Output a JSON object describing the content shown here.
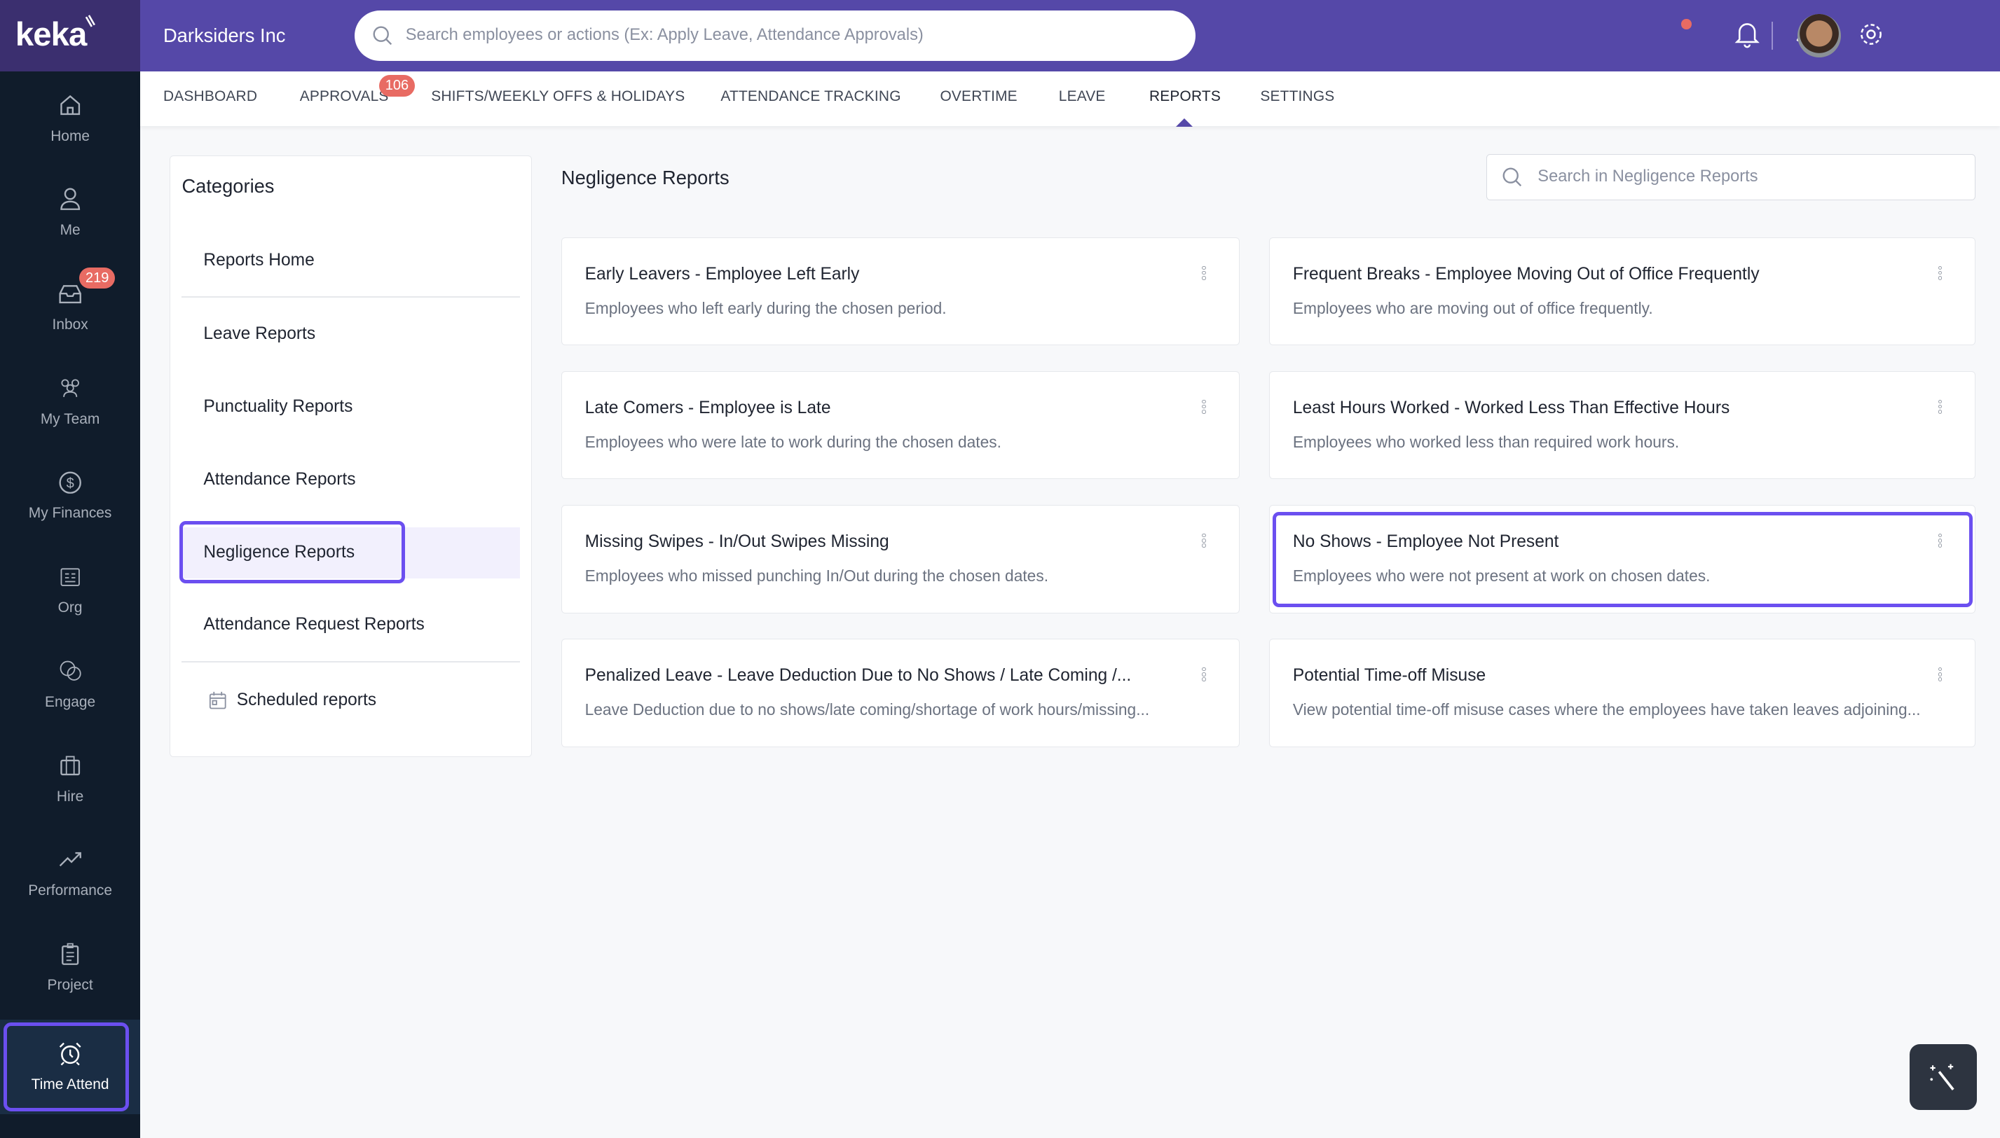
{
  "brand": {
    "logo": "keka",
    "company": "Darksiders Inc",
    "accent": "#5548a8",
    "highlight": "#6b4ff0"
  },
  "search": {
    "placeholder": "Search employees or actions (Ex: Apply Leave, Attendance Approvals)"
  },
  "topbar_icons": [
    "bell-icon",
    "rocket-icon",
    "gear-icon",
    "avatar"
  ],
  "sidebar": {
    "items": [
      {
        "label": "Home",
        "icon": "home-icon"
      },
      {
        "label": "Me",
        "icon": "user-icon"
      },
      {
        "label": "Inbox",
        "icon": "inbox-icon",
        "badge": "219"
      },
      {
        "label": "My Team",
        "icon": "team-icon"
      },
      {
        "label": "My Finances",
        "icon": "dollar-icon"
      },
      {
        "label": "Org",
        "icon": "org-icon"
      },
      {
        "label": "Engage",
        "icon": "engage-icon"
      },
      {
        "label": "Hire",
        "icon": "briefcase-icon"
      },
      {
        "label": "Performance",
        "icon": "trend-icon"
      },
      {
        "label": "Project",
        "icon": "clipboard-icon"
      },
      {
        "label": "Time Attend",
        "icon": "alarm-clock-icon",
        "active": true
      }
    ]
  },
  "tabs": [
    {
      "label": "DASHBOARD"
    },
    {
      "label": "APPROVALS",
      "badge": "106"
    },
    {
      "label": "SHIFTS/WEEKLY OFFS & HOLIDAYS"
    },
    {
      "label": "ATTENDANCE TRACKING"
    },
    {
      "label": "OVERTIME"
    },
    {
      "label": "LEAVE"
    },
    {
      "label": "REPORTS",
      "active": true
    },
    {
      "label": "SETTINGS"
    }
  ],
  "categories": {
    "title": "Categories",
    "items": [
      {
        "label": "Reports Home"
      },
      {
        "label": "Leave Reports"
      },
      {
        "label": "Punctuality Reports"
      },
      {
        "label": "Attendance Reports"
      },
      {
        "label": "Negligence Reports",
        "selected": true
      },
      {
        "label": "Attendance Request Reports"
      },
      {
        "label": "Scheduled reports"
      }
    ]
  },
  "main": {
    "title": "Negligence Reports",
    "search_placeholder": "Search in Negligence Reports",
    "cards": [
      {
        "title": "Early Leavers - Employee Left Early",
        "desc": "Employees who left early during the chosen period."
      },
      {
        "title": "Frequent Breaks - Employee Moving Out of Office Frequently",
        "desc": "Employees who are moving out of office frequently."
      },
      {
        "title": "Late Comers - Employee is Late",
        "desc": "Employees who were late to work during the chosen dates."
      },
      {
        "title": "Least Hours Worked - Worked Less Than Effective Hours",
        "desc": "Employees who worked less than required work hours."
      },
      {
        "title": "Missing Swipes - In/Out Swipes Missing",
        "desc": "Employees who missed punching In/Out during the chosen dates."
      },
      {
        "title": "No Shows - Employee Not Present",
        "desc": "Employees who were not present at work on chosen dates.",
        "highlighted": true
      },
      {
        "title": "Penalized Leave - Leave Deduction Due to No Shows / Late Coming /...",
        "desc": "Leave Deduction due to no shows/late coming/shortage of work hours/missing..."
      },
      {
        "title": "Potential Time-off Misuse",
        "desc": "View potential time-off misuse cases where the employees have taken leaves adjoining..."
      }
    ]
  }
}
